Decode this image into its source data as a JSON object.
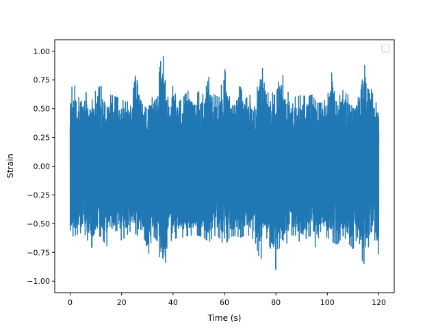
{
  "chart_data": {
    "type": "line",
    "title": "",
    "xlabel": "Time (s)",
    "ylabel": "Strain",
    "xlim": [
      -6,
      126
    ],
    "ylim": [
      -1.1,
      1.1
    ],
    "x_ticks": [
      0,
      20,
      40,
      60,
      80,
      100,
      120
    ],
    "x_tick_labels": [
      "0",
      "20",
      "40",
      "60",
      "80",
      "100",
      "120"
    ],
    "y_ticks": [
      -1.0,
      -0.75,
      -0.5,
      -0.25,
      0.0,
      0.25,
      0.5,
      0.75,
      1.0
    ],
    "y_tick_labels": [
      "−1.00",
      "−0.75",
      "−0.50",
      "−0.25",
      "0.00",
      "0.25",
      "0.50",
      "0.75",
      "1.00"
    ],
    "grid": false,
    "legend": {
      "placement": "top-right",
      "entries": []
    },
    "series": [
      {
        "color": "#1f77b4",
        "x_start": 0,
        "x_end": 120,
        "envelope_x": [
          0,
          2,
          4,
          6,
          8,
          10,
          12,
          14,
          16,
          18,
          20,
          22,
          24,
          26,
          28,
          30,
          32,
          34,
          35.5,
          36.5,
          38,
          40,
          42,
          44,
          46,
          48,
          50,
          52,
          54,
          56,
          58,
          60,
          62,
          64,
          66,
          68,
          70,
          72,
          74,
          76,
          78,
          80,
          82,
          84,
          86,
          88,
          90,
          92,
          94,
          96,
          98,
          100,
          102,
          104,
          106,
          108,
          110,
          112,
          114,
          116,
          118,
          120
        ],
        "envelope_max": [
          0.68,
          0.7,
          0.55,
          0.65,
          0.55,
          0.66,
          0.7,
          0.6,
          0.62,
          0.6,
          0.58,
          0.55,
          0.62,
          0.85,
          0.6,
          0.58,
          0.6,
          0.7,
          0.97,
          0.95,
          0.6,
          0.7,
          0.55,
          0.6,
          0.66,
          0.6,
          0.65,
          0.62,
          0.78,
          0.62,
          0.6,
          0.86,
          0.6,
          0.62,
          0.7,
          0.58,
          0.62,
          0.5,
          1.0,
          0.62,
          0.66,
          0.6,
          0.86,
          0.66,
          0.62,
          0.6,
          0.62,
          0.6,
          0.62,
          0.55,
          0.55,
          0.6,
          0.85,
          0.58,
          0.66,
          0.62,
          0.6,
          0.6,
          0.92,
          0.76,
          0.6,
          0.5
        ],
        "envelope_min": [
          -0.62,
          -0.6,
          -0.58,
          -0.6,
          -0.72,
          -0.65,
          -0.6,
          -0.7,
          -0.65,
          -0.55,
          -0.65,
          -0.6,
          -0.55,
          -0.6,
          -0.62,
          -0.82,
          -0.6,
          -0.65,
          -0.95,
          -0.98,
          -0.62,
          -0.66,
          -0.6,
          -0.62,
          -0.6,
          -0.6,
          -0.6,
          -0.62,
          -0.66,
          -0.6,
          -0.62,
          -0.7,
          -0.62,
          -0.6,
          -0.62,
          -0.6,
          -0.6,
          -0.66,
          -0.84,
          -0.6,
          -0.72,
          -0.9,
          -0.62,
          -0.68,
          -0.6,
          -0.6,
          -0.7,
          -0.62,
          -0.6,
          -0.76,
          -0.6,
          -0.62,
          -0.66,
          -0.68,
          -0.6,
          -0.66,
          -0.72,
          -0.6,
          -0.87,
          -0.7,
          -0.6,
          -0.78
        ]
      }
    ]
  }
}
